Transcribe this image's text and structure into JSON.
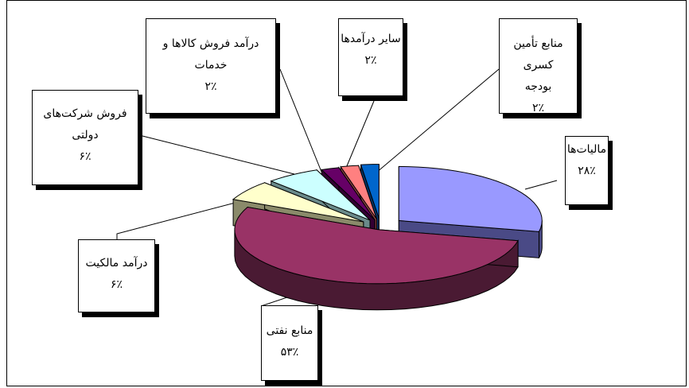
{
  "chart_data": {
    "type": "pie",
    "style": "3d-exploded",
    "slices": [
      {
        "label": "مالیات‌ها",
        "value": 28,
        "display": "۲۸٪",
        "color": "#9999ff",
        "side": "#4a4a86"
      },
      {
        "label": "منابع نفتی",
        "value": 53,
        "display": "۵۳٪",
        "color": "#993366",
        "side": "#4a1a33"
      },
      {
        "label": "درآمد مالکیت",
        "value": 6,
        "display": "۶٪",
        "color": "#ffffcc",
        "side": "#8a8a6a"
      },
      {
        "label": "فروش شرکت‌های دولتی",
        "value": 6,
        "display": "۶٪",
        "color": "#ccffff",
        "side": "#6a8a8a"
      },
      {
        "label": "درآمد فروش کالاها و خدمات",
        "value": 2,
        "display": "۲٪",
        "color": "#660066",
        "side": "#330033"
      },
      {
        "label": "سایر درآمدها",
        "value": 2,
        "display": "۲٪",
        "color": "#ff8080",
        "side": "#8a4040"
      },
      {
        "label": "منابع تأمین کسری بودجه",
        "value": 2,
        "display": "۲٪",
        "color": "#0066cc",
        "side": "#003366"
      }
    ],
    "callout_lines": [
      "مالیات‌ها",
      "منابع تأمین کسری",
      "بودجه",
      "سایر درآمدها",
      "درآمد فروش کالاها و",
      "خدمات",
      "فروش شرکت‌های",
      "دولتی",
      "درآمد مالکیت",
      "منابع نفتی"
    ]
  }
}
